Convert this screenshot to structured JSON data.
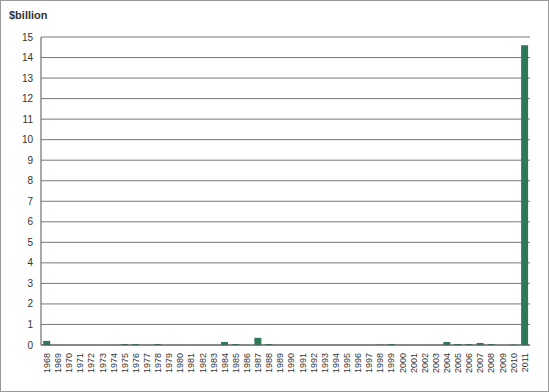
{
  "chart_data": {
    "type": "bar",
    "y_label": "$billion",
    "categories": [
      "1968",
      "1969",
      "1970",
      "1971",
      "1972",
      "1973",
      "1974",
      "1975",
      "1976",
      "1977",
      "1978",
      "1979",
      "1980",
      "1981",
      "1982",
      "1983",
      "1984",
      "1985",
      "1986",
      "1987",
      "1988",
      "1989",
      "1990",
      "1991",
      "1992",
      "1993",
      "1994",
      "1995",
      "1996",
      "1997",
      "1998",
      "1999",
      "2000",
      "2001",
      "2002",
      "2003",
      "2004",
      "2005",
      "2006",
      "2007",
      "2008",
      "2009",
      "2010",
      "2011"
    ],
    "values": [
      0.2,
      0,
      0,
      0,
      0,
      0,
      0,
      0.05,
      0.05,
      0,
      0.05,
      0,
      0,
      0,
      0,
      0,
      0.15,
      0.05,
      0,
      0.35,
      0.05,
      0,
      0,
      0,
      0,
      0,
      0,
      0,
      0,
      0,
      0.02,
      0.05,
      0,
      0,
      0,
      0,
      0.15,
      0.05,
      0.05,
      0.1,
      0.05,
      0,
      0.02,
      14.6
    ],
    "color": "#2e7a58",
    "ylim": [
      0,
      15
    ],
    "yticks": [
      0,
      1,
      2,
      3,
      4,
      5,
      6,
      7,
      8,
      9,
      10,
      11,
      12,
      13,
      14,
      15
    ],
    "grid": true
  }
}
